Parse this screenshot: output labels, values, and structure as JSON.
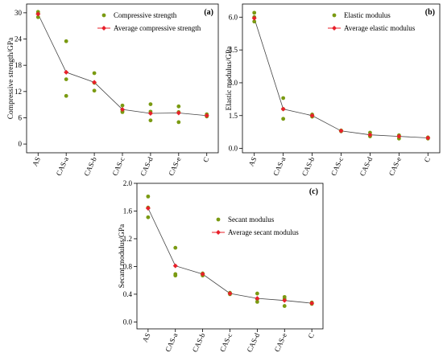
{
  "colors": {
    "specimen": "#7a9a12",
    "average": "#e8202a",
    "line": "#444444"
  },
  "chart_data": [
    {
      "type": "scatter",
      "panel_tag": "(a)",
      "categories": [
        "AS",
        "CAS-a",
        "CAS-b",
        "CAS-c",
        "CAS-d",
        "CAS-e",
        "C"
      ],
      "ylabel": "Compressive strength/GPa",
      "ylim": [
        -2,
        32
      ],
      "yticks": [
        "0",
        "6",
        "12",
        "18",
        "24",
        "30"
      ],
      "legend_position": "top-right",
      "series": [
        {
          "name": "Compressive strength",
          "kind": "points",
          "values": [
            [
              30.2,
              29.9,
              29.0
            ],
            [
              23.5,
              14.8,
              11.0
            ],
            [
              16.2,
              14.0,
              12.2
            ],
            [
              8.8,
              7.5,
              7.3
            ],
            [
              9.1,
              7.4,
              5.4
            ],
            [
              8.6,
              7.3,
              5.0
            ],
            [
              6.8,
              6.5,
              6.3
            ]
          ]
        },
        {
          "name": "Average compressive strength",
          "kind": "line-markers",
          "values": [
            29.7,
            16.4,
            14.1,
            7.9,
            7.0,
            7.1,
            6.5
          ]
        }
      ]
    },
    {
      "type": "scatter",
      "panel_tag": "(b)",
      "categories": [
        "AS",
        "CAS-a",
        "CAS-b",
        "CAS-c",
        "CAS-d",
        "CAS-e",
        "C"
      ],
      "ylabel": "Elastic modulus/GPa",
      "ylim": [
        -0.2,
        6.6
      ],
      "yticks": [
        "0.0",
        "1.5",
        "3.0",
        "4.5",
        "6.0"
      ],
      "legend_position": "top-right",
      "series": [
        {
          "name": "Elastic modulus",
          "kind": "points",
          "values": [
            [
              6.2,
              6.0,
              5.8
            ],
            [
              2.3,
              1.8,
              1.35
            ],
            [
              1.55,
              1.5,
              1.45
            ],
            [
              0.82,
              0.8,
              0.78
            ],
            [
              0.72,
              0.62,
              0.55
            ],
            [
              0.6,
              0.55,
              0.45
            ],
            [
              0.5,
              0.48,
              0.45
            ]
          ]
        },
        {
          "name": "Average elastic modulus",
          "kind": "line-markers",
          "values": [
            5.95,
            1.8,
            1.5,
            0.8,
            0.62,
            0.55,
            0.48
          ]
        }
      ]
    },
    {
      "type": "scatter",
      "panel_tag": "(c)",
      "categories": [
        "AS",
        "CAS-a",
        "CAS-b",
        "CAS-c",
        "CAS-d",
        "CAS-e",
        "C"
      ],
      "ylabel": "Secant modulus/GPa",
      "ylim": [
        -0.1,
        2.0
      ],
      "yticks": [
        "0.0",
        "0.4",
        "0.8",
        "1.2",
        "1.6",
        "2.0"
      ],
      "legend_position": "top-right",
      "series": [
        {
          "name": "Secant modulus",
          "kind": "points",
          "values": [
            [
              1.81,
              1.65,
              1.51
            ],
            [
              1.07,
              0.69,
              0.67
            ],
            [
              0.7,
              0.68,
              0.67
            ],
            [
              0.42,
              0.41,
              0.4
            ],
            [
              0.41,
              0.33,
              0.29
            ],
            [
              0.36,
              0.33,
              0.23
            ],
            [
              0.28,
              0.27,
              0.26
            ]
          ]
        },
        {
          "name": "Average secant  modulus",
          "kind": "line-markers",
          "values": [
            1.64,
            0.81,
            0.69,
            0.41,
            0.34,
            0.31,
            0.27
          ]
        }
      ]
    }
  ]
}
